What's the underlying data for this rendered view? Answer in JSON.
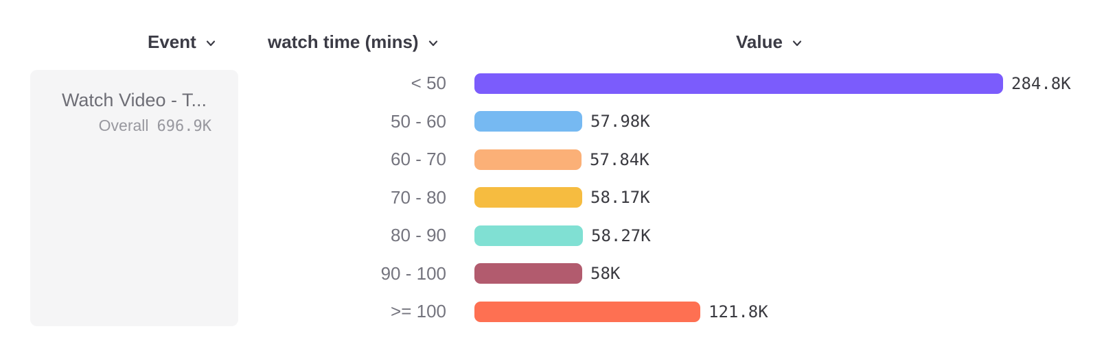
{
  "header": {
    "event_label": "Event",
    "breakdown_label": "watch time (mins)",
    "value_label": "Value"
  },
  "event_card": {
    "title": "Watch Video - T...",
    "overall_label": "Overall",
    "overall_value": "696.9K"
  },
  "chart_data": {
    "type": "bar",
    "orientation": "horizontal",
    "title": "",
    "xlabel": "Value",
    "ylabel": "watch time (mins)",
    "series_name": "Watch Video - T...",
    "categories": [
      "< 50",
      "50 - 60",
      "60 - 70",
      "70 - 80",
      "80 - 90",
      "90 - 100",
      ">= 100"
    ],
    "values": [
      284800,
      57980,
      57840,
      58170,
      58270,
      58000,
      121800
    ],
    "value_labels": [
      "284.8K",
      "57.98K",
      "57.84K",
      "58.17K",
      "58.27K",
      "58K",
      "121.8K"
    ],
    "bar_colors": [
      "#7b5cfc",
      "#76b9f2",
      "#fbb077",
      "#f6bc40",
      "#80e0d3",
      "#b25b6e",
      "#fe7052"
    ],
    "total": 696900,
    "total_label": "696.9K",
    "xlim": [
      0,
      284800
    ],
    "grid": false,
    "legend": false
  }
}
